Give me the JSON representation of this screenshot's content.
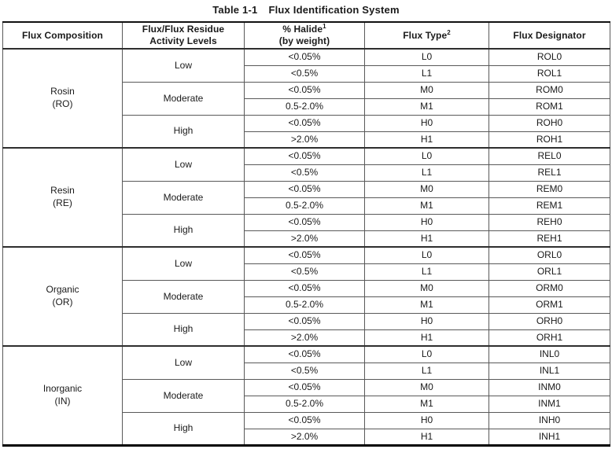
{
  "title": {
    "prefix": "Table 1-1",
    "text": "Flux Identification System"
  },
  "table": {
    "headers": {
      "composition": "Flux Composition",
      "activity_line1": "Flux/Flux Residue",
      "activity_line2": "Activity Levels",
      "halide_line1": "% Halide",
      "halide_sup": "1",
      "halide_line2": "(by weight)",
      "flux_type": "Flux Type",
      "flux_type_sup": "2",
      "designator": "Flux Designator"
    },
    "groups": [
      {
        "composition_line1": "Rosin",
        "composition_line2": "(RO)",
        "levels": [
          {
            "label": "Low",
            "rows": [
              {
                "halide": "<0.05%",
                "type": "L0",
                "designator": "ROL0"
              },
              {
                "halide": "<0.5%",
                "type": "L1",
                "designator": "ROL1"
              }
            ]
          },
          {
            "label": "Moderate",
            "rows": [
              {
                "halide": "<0.05%",
                "type": "M0",
                "designator": "ROM0"
              },
              {
                "halide": "0.5-2.0%",
                "type": "M1",
                "designator": "ROM1"
              }
            ]
          },
          {
            "label": "High",
            "rows": [
              {
                "halide": "<0.05%",
                "type": "H0",
                "designator": "ROH0"
              },
              {
                "halide": ">2.0%",
                "type": "H1",
                "designator": "ROH1"
              }
            ]
          }
        ]
      },
      {
        "composition_line1": "Resin",
        "composition_line2": "(RE)",
        "levels": [
          {
            "label": "Low",
            "rows": [
              {
                "halide": "<0.05%",
                "type": "L0",
                "designator": "REL0"
              },
              {
                "halide": "<0.5%",
                "type": "L1",
                "designator": "REL1"
              }
            ]
          },
          {
            "label": "Moderate",
            "rows": [
              {
                "halide": "<0.05%",
                "type": "M0",
                "designator": "REM0"
              },
              {
                "halide": "0.5-2.0%",
                "type": "M1",
                "designator": "REM1"
              }
            ]
          },
          {
            "label": "High",
            "rows": [
              {
                "halide": "<0.05%",
                "type": "H0",
                "designator": "REH0"
              },
              {
                "halide": ">2.0%",
                "type": "H1",
                "designator": "REH1"
              }
            ]
          }
        ]
      },
      {
        "composition_line1": "Organic",
        "composition_line2": "(OR)",
        "levels": [
          {
            "label": "Low",
            "rows": [
              {
                "halide": "<0.05%",
                "type": "L0",
                "designator": "ORL0"
              },
              {
                "halide": "<0.5%",
                "type": "L1",
                "designator": "ORL1"
              }
            ]
          },
          {
            "label": "Moderate",
            "rows": [
              {
                "halide": "<0.05%",
                "type": "M0",
                "designator": "ORM0"
              },
              {
                "halide": "0.5-2.0%",
                "type": "M1",
                "designator": "ORM1"
              }
            ]
          },
          {
            "label": "High",
            "rows": [
              {
                "halide": "<0.05%",
                "type": "H0",
                "designator": "ORH0"
              },
              {
                "halide": ">2.0%",
                "type": "H1",
                "designator": "ORH1"
              }
            ]
          }
        ]
      },
      {
        "composition_line1": "Inorganic",
        "composition_line2": "(IN)",
        "levels": [
          {
            "label": "Low",
            "rows": [
              {
                "halide": "<0.05%",
                "type": "L0",
                "designator": "INL0"
              },
              {
                "halide": "<0.5%",
                "type": "L1",
                "designator": "INL1"
              }
            ]
          },
          {
            "label": "Moderate",
            "rows": [
              {
                "halide": "<0.05%",
                "type": "M0",
                "designator": "INM0"
              },
              {
                "halide": "0.5-2.0%",
                "type": "M1",
                "designator": "INM1"
              }
            ]
          },
          {
            "label": "High",
            "rows": [
              {
                "halide": "<0.05%",
                "type": "H0",
                "designator": "INH0"
              },
              {
                "halide": ">2.0%",
                "type": "H1",
                "designator": "INH1"
              }
            ]
          }
        ]
      }
    ]
  }
}
